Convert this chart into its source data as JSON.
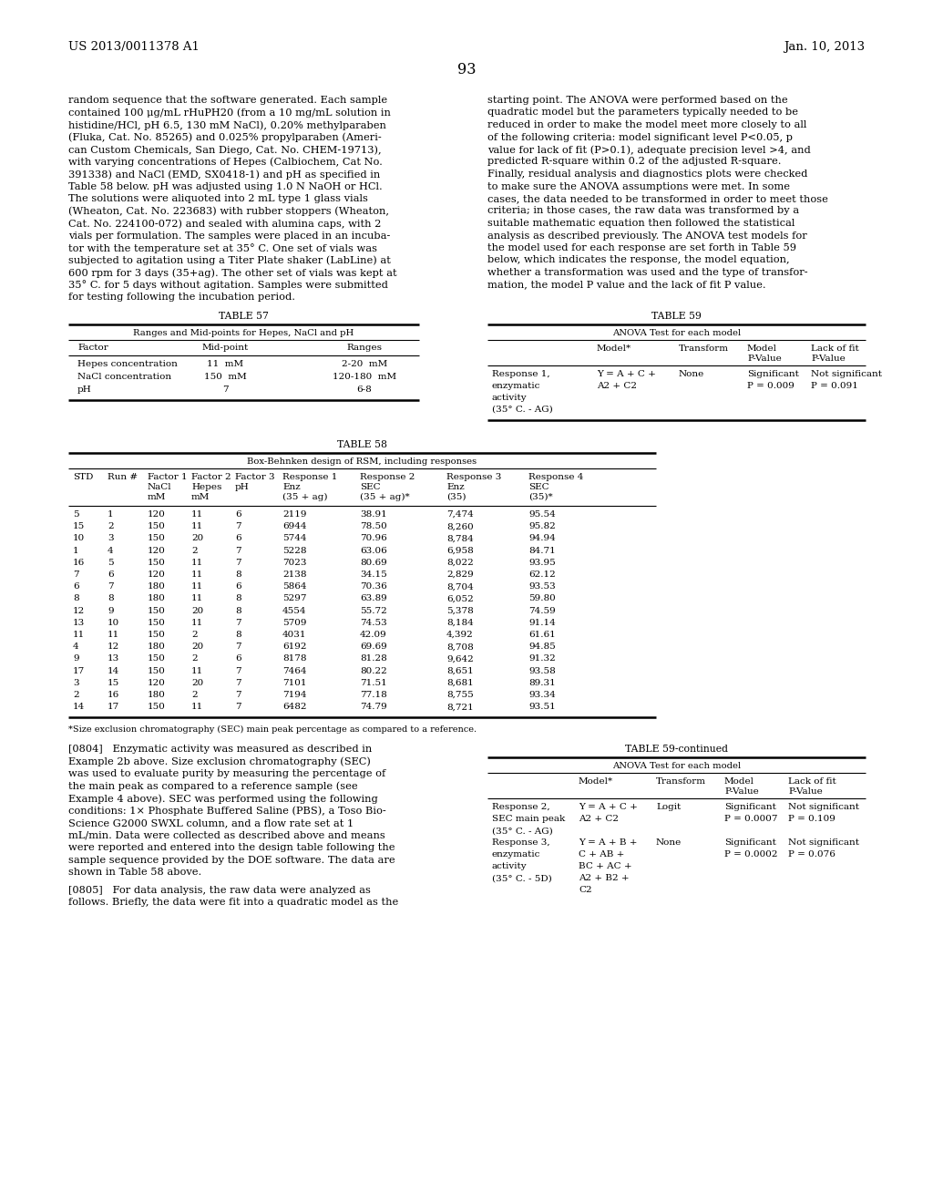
{
  "page_header_left": "US 2013/0011378 A1",
  "page_header_right": "Jan. 10, 2013",
  "page_number": "93",
  "left_col_text": [
    "random sequence that the software generated. Each sample",
    "contained 100 μg/mL rHuPH20 (from a 10 mg/mL solution in",
    "histidine/HCl, pH 6.5, 130 mM NaCl), 0.20% methylparaben",
    "(Fluka, Cat. No. 85265) and 0.025% propylparaben (Ameri-",
    "can Custom Chemicals, San Diego, Cat. No. CHEM-19713),",
    "with varying concentrations of Hepes (Calbiochem, Cat No.",
    "391338) and NaCl (EMD, SX0418-1) and pH as specified in",
    "Table 58 below. pH was adjusted using 1.0 N NaOH or HCl.",
    "The solutions were aliquoted into 2 mL type 1 glass vials",
    "(Wheaton, Cat. No. 223683) with rubber stoppers (Wheaton,",
    "Cat. No. 224100-072) and sealed with alumina caps, with 2",
    "vials per formulation. The samples were placed in an incuba-",
    "tor with the temperature set at 35° C. One set of vials was",
    "subjected to agitation using a Titer Plate shaker (LabLine) at",
    "600 rpm for 3 days (35+ag). The other set of vials was kept at",
    "35° C. for 5 days without agitation. Samples were submitted",
    "for testing following the incubation period."
  ],
  "right_col_text": [
    "starting point. The ANOVA were performed based on the",
    "quadratic model but the parameters typically needed to be",
    "reduced in order to make the model meet more closely to all",
    "of the following criteria: model significant level P<0.05, p",
    "value for lack of fit (P>0.1), adequate precision level >4, and",
    "predicted R-square within 0.2 of the adjusted R-square.",
    "Finally, residual analysis and diagnostics plots were checked",
    "to make sure the ANOVA assumptions were met. In some",
    "cases, the data needed to be transformed in order to meet those",
    "criteria; in those cases, the raw data was transformed by a",
    "suitable mathematic equation then followed the statistical",
    "analysis as described previously. The ANOVA test models for",
    "the model used for each response are set forth in Table 59",
    "below, which indicates the response, the model equation,",
    "whether a transformation was used and the type of transfor-",
    "mation, the model P value and the lack of fit P value."
  ],
  "table57_title": "TABLE 57",
  "table57_subtitle": "Ranges and Mid-points for Hepes, NaCl and pH",
  "table57_headers": [
    "Factor",
    "Mid-point",
    "Ranges"
  ],
  "table57_rows": [
    [
      "Hepes concentration",
      "11  mM",
      "2-20  mM"
    ],
    [
      "NaCl concentration",
      "150  mM",
      "120-180  mM"
    ],
    [
      "pH",
      "7",
      "6-8"
    ]
  ],
  "table59_title": "TABLE 59",
  "table59_subtitle": "ANOVA Test for each model",
  "table59_rows": [
    [
      "Response 1,",
      "Y = A + C +",
      "None",
      "Significant",
      "Not significant"
    ],
    [
      "enzymatic",
      "A2 + C2",
      "",
      "P = 0.009",
      "P = 0.091"
    ],
    [
      "activity",
      "",
      "",
      "",
      ""
    ],
    [
      "(35° C. - AG)",
      "",
      "",
      "",
      ""
    ]
  ],
  "table58_title": "TABLE 58",
  "table58_subtitle": "Box-Behnken design of RSM, including responses",
  "table58_col_headers": [
    [
      "STD",
      "",
      ""
    ],
    [
      "Run #",
      "",
      ""
    ],
    [
      "Factor 1",
      "NaCl",
      "mM"
    ],
    [
      "Factor 2",
      "Hepes",
      "mM"
    ],
    [
      "Factor 3",
      "pH",
      ""
    ],
    [
      "Response 1",
      "Enz",
      "(35 + ag)"
    ],
    [
      "Response 2",
      "SEC",
      "(35 + ag)*"
    ],
    [
      "Response 3",
      "Enz",
      "(35)"
    ],
    [
      "Response 4",
      "SEC",
      "(35)*"
    ]
  ],
  "table58_rows": [
    [
      5,
      1,
      120,
      11,
      6,
      2119,
      "38.91",
      "7,474",
      "95.54"
    ],
    [
      15,
      2,
      150,
      11,
      7,
      6944,
      "78.50",
      "8,260",
      "95.82"
    ],
    [
      10,
      3,
      150,
      20,
      6,
      5744,
      "70.96",
      "8,784",
      "94.94"
    ],
    [
      1,
      4,
      120,
      2,
      7,
      5228,
      "63.06",
      "6,958",
      "84.71"
    ],
    [
      16,
      5,
      150,
      11,
      7,
      7023,
      "80.69",
      "8,022",
      "93.95"
    ],
    [
      7,
      6,
      120,
      11,
      8,
      2138,
      "34.15",
      "2,829",
      "62.12"
    ],
    [
      6,
      7,
      180,
      11,
      6,
      5864,
      "70.36",
      "8,704",
      "93.53"
    ],
    [
      8,
      8,
      180,
      11,
      8,
      5297,
      "63.89",
      "6,052",
      "59.80"
    ],
    [
      12,
      9,
      150,
      20,
      8,
      4554,
      "55.72",
      "5,378",
      "74.59"
    ],
    [
      13,
      10,
      150,
      11,
      7,
      5709,
      "74.53",
      "8,184",
      "91.14"
    ],
    [
      11,
      11,
      150,
      2,
      8,
      4031,
      "42.09",
      "4,392",
      "61.61"
    ],
    [
      4,
      12,
      180,
      20,
      7,
      6192,
      "69.69",
      "8,708",
      "94.85"
    ],
    [
      9,
      13,
      150,
      2,
      6,
      8178,
      "81.28",
      "9,642",
      "91.32"
    ],
    [
      17,
      14,
      150,
      11,
      7,
      7464,
      "80.22",
      "8,651",
      "93.58"
    ],
    [
      3,
      15,
      120,
      20,
      7,
      7101,
      "71.51",
      "8,681",
      "89.31"
    ],
    [
      2,
      16,
      180,
      2,
      7,
      7194,
      "77.18",
      "8,755",
      "93.34"
    ],
    [
      14,
      17,
      150,
      11,
      7,
      6482,
      "74.79",
      "8,721",
      "93.51"
    ]
  ],
  "table58_footnote": "*Size exclusion chromatography (SEC) main peak percentage as compared to a reference.",
  "para0804_text": [
    "[0804]   Enzymatic activity was measured as described in",
    "Example 2b above. Size exclusion chromatography (SEC)",
    "was used to evaluate purity by measuring the percentage of",
    "the main peak as compared to a reference sample (see",
    "Example 4 above). SEC was performed using the following",
    "conditions: 1× Phosphate Buffered Saline (PBS), a Toso Bio-",
    "Science G2000 SWXL column, and a flow rate set at 1",
    "mL/min. Data were collected as described above and means",
    "were reported and entered into the design table following the",
    "sample sequence provided by the DOE software. The data are",
    "shown in Table 58 above."
  ],
  "para0805_text": [
    "[0805]   For data analysis, the raw data were analyzed as",
    "follows. Briefly, the data were fit into a quadratic model as the"
  ],
  "table59cont_title": "TABLE 59-continued",
  "table59cont_subtitle": "ANOVA Test for each model",
  "table59cont_rows": [
    [
      "Response 2,",
      "Y = A + C +",
      "Logit",
      "Significant",
      "Not significant"
    ],
    [
      "SEC main peak",
      "A2 + C2",
      "",
      "P = 0.0007",
      "P = 0.109"
    ],
    [
      "(35° C. - AG)",
      "",
      "",
      "",
      ""
    ],
    [
      "Response 3,",
      "Y = A + B +",
      "None",
      "Significant",
      "Not significant"
    ],
    [
      "enzymatic",
      "C + AB +",
      "",
      "P = 0.0002",
      "P = 0.076"
    ],
    [
      "activity",
      "BC + AC +",
      "",
      "",
      ""
    ],
    [
      "(35° C. - 5D)",
      "A2 + B2 +",
      "",
      "",
      ""
    ],
    [
      "",
      "C2",
      "",
      "",
      ""
    ]
  ],
  "bg_color": "#ffffff",
  "text_color": "#000000"
}
